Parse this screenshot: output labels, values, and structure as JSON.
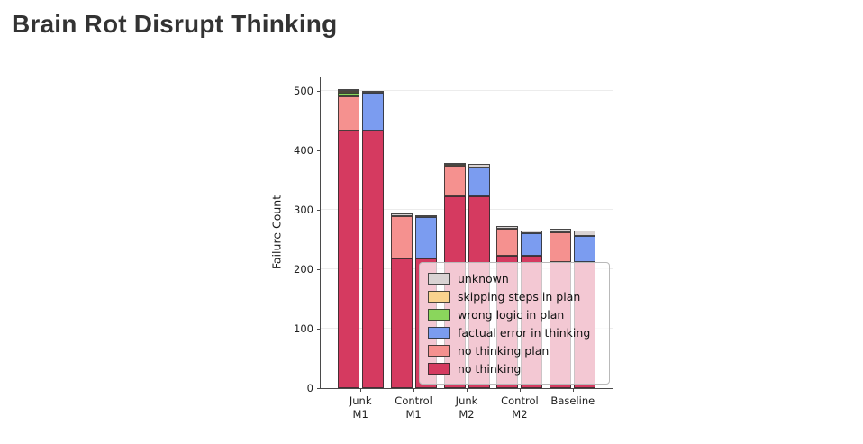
{
  "title": "Brain Rot Disrupt Thinking",
  "chart_data": {
    "type": "bar",
    "stacked": true,
    "title": "Brain Rot Disrupt Thinking",
    "xlabel": "",
    "ylabel": "Failure Count",
    "ylim": [
      0,
      522
    ],
    "yticks": [
      0,
      100,
      200,
      300,
      400,
      500
    ],
    "grid": "horizontal, light",
    "legend_position": "lower right inside plot",
    "categories": [
      [
        "Junk",
        "M1"
      ],
      [
        "Control",
        "M1"
      ],
      [
        "Junk",
        "M2"
      ],
      [
        "Control",
        "M2"
      ],
      [
        "Baseline"
      ]
    ],
    "legend_labels": [
      "unknown",
      "skipping steps in plan",
      "wrong logic in plan",
      "factual error in thinking",
      "no thinking plan",
      "no thinking"
    ],
    "colors": {
      "no thinking": "#d53a60",
      "no thinking plan": "#f5918f",
      "factual error in thinking": "#7b9cf0",
      "wrong logic in plan": "#8ad65c",
      "skipping steps in plan": "#f9d38e",
      "unknown": "#d9d3d3"
    },
    "left_stack_order": [
      "no thinking",
      "no thinking plan",
      "wrong logic in plan",
      "skipping steps in plan",
      "unknown"
    ],
    "right_stack_order": [
      "no thinking",
      "factual error in thinking",
      "unknown"
    ],
    "groups": [
      {
        "category": "Junk M1",
        "left": {
          "no thinking": 433,
          "no thinking plan": 58,
          "wrong logic in plan": 6,
          "skipping steps in plan": 2,
          "unknown": 2
        },
        "right": {
          "no thinking": 433,
          "factual error in thinking": 64,
          "unknown": 3
        }
      },
      {
        "category": "Control M1",
        "left": {
          "no thinking": 218,
          "no thinking plan": 71,
          "wrong logic in plan": 0,
          "skipping steps in plan": 0,
          "unknown": 5
        },
        "right": {
          "no thinking": 218,
          "factual error in thinking": 70,
          "unknown": 3
        }
      },
      {
        "category": "Junk M2",
        "left": {
          "no thinking": 322,
          "no thinking plan": 51,
          "wrong logic in plan": 0,
          "skipping steps in plan": 2,
          "unknown": 3
        },
        "right": {
          "no thinking": 322,
          "factual error in thinking": 48,
          "unknown": 7
        }
      },
      {
        "category": "Control M2",
        "left": {
          "no thinking": 223,
          "no thinking plan": 45,
          "wrong logic in plan": 0,
          "skipping steps in plan": 0,
          "unknown": 5
        },
        "right": {
          "no thinking": 223,
          "factual error in thinking": 37,
          "unknown": 5
        }
      },
      {
        "category": "Baseline",
        "left": {
          "no thinking": 212,
          "no thinking plan": 50,
          "wrong logic in plan": 0,
          "skipping steps in plan": 0,
          "unknown": 6
        },
        "right": {
          "no thinking": 212,
          "factual error in thinking": 44,
          "unknown": 9
        }
      }
    ]
  }
}
